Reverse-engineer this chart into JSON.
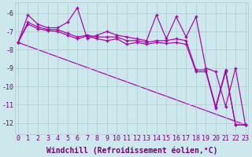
{
  "background_color": "#cce8ec",
  "line_color": "#aa00aa",
  "grid_color": "#aacccc",
  "xlabel": "Windchill (Refroidissement éolien,°C)",
  "font_color": "#770077",
  "tick_font_size": 6,
  "xlabel_font_size": 7,
  "xlim": [
    -0.3,
    23.3
  ],
  "ylim": [
    -12.6,
    -5.4
  ],
  "yticks": [
    -12,
    -11,
    -10,
    -9,
    -8,
    -7,
    -6
  ],
  "xticks": [
    0,
    1,
    2,
    3,
    4,
    5,
    6,
    7,
    8,
    9,
    10,
    11,
    12,
    13,
    14,
    15,
    16,
    17,
    18,
    19,
    20,
    21,
    22,
    23
  ],
  "line1": [
    -7.6,
    -6.1,
    -6.6,
    -6.8,
    -6.8,
    -6.5,
    -5.7,
    -7.4,
    -7.2,
    -7.0,
    -7.2,
    -7.3,
    -7.4,
    -7.5,
    -6.1,
    -7.4,
    -6.2,
    -7.3,
    -6.2,
    -9.0,
    -9.2,
    -11.1,
    -9.0,
    -12.1
  ],
  "line2": [
    -7.6,
    -6.5,
    -6.75,
    -6.9,
    -6.9,
    -7.1,
    -7.3,
    -7.2,
    -7.3,
    -7.3,
    -7.3,
    -7.5,
    -7.5,
    -7.6,
    -7.5,
    -7.5,
    -7.4,
    -7.5,
    -9.1,
    -9.1,
    -11.1,
    -9.1,
    -12.1,
    -12.1
  ],
  "line3": [
    -7.6,
    -6.6,
    -6.85,
    -6.95,
    -7.0,
    -7.2,
    -7.4,
    -7.25,
    -7.4,
    -7.5,
    -7.4,
    -7.7,
    -7.6,
    -7.7,
    -7.6,
    -7.65,
    -7.6,
    -7.7,
    -9.2,
    -9.2,
    -11.2,
    -9.2,
    -12.1,
    -12.1
  ],
  "trend_x": [
    0,
    23
  ],
  "trend_y": [
    -7.6,
    -12.1
  ]
}
